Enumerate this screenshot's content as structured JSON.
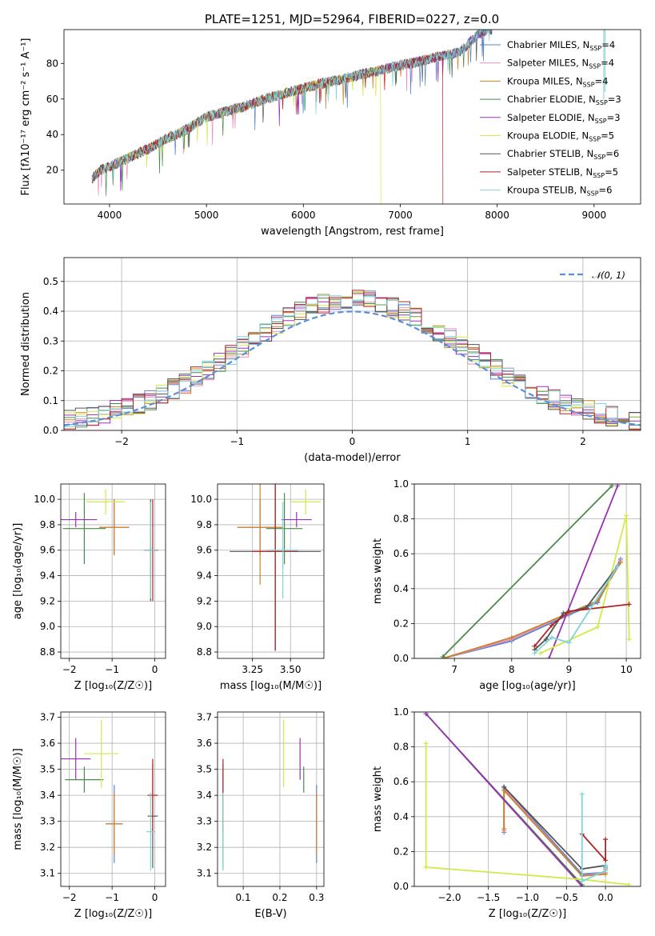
{
  "chart_data": [
    {
      "type": "line",
      "title": "PLATE=1251, MJD=52964, FIBERID=0227, z=0.0",
      "xlabel": "wavelength [Angstrom, rest frame]",
      "ylabel": "Flux [f$_\\lambda$10$^{-17}$ erg cm$^{-2}$ s$^{-1}$ A$^{-1}$]",
      "ylabel_display": "Flux [fλ10⁻¹⁷ erg cm⁻² s⁻¹ A⁻¹]",
      "xlim": [
        3530,
        9480
      ],
      "ylim": [
        1,
        99
      ],
      "xticks": [
        "4000",
        "5000",
        "6000",
        "7000",
        "8000",
        "9000"
      ],
      "yticks": [
        "20",
        "40",
        "60",
        "80"
      ],
      "grid": false,
      "legend_position": "top-right",
      "legend": [
        {
          "name": "Chabrier MILES, N$_{SSP}$=4",
          "label": "Chabrier MILES, N",
          "nssp": "=4",
          "color": "#5b82c9"
        },
        {
          "name": "Salpeter MILES, N$_{SSP}$=4",
          "label": "Salpeter MILES, N",
          "nssp": "=4",
          "color": "#e88fc0"
        },
        {
          "name": "Kroupa MILES, N$_{SSP}$=4",
          "label": "Kroupa MILES, N",
          "nssp": "=4",
          "color": "#c9822a"
        },
        {
          "name": "Chabrier ELODIE, N$_{SSP}$=3",
          "label": "Chabrier ELODIE, N",
          "nssp": "=3",
          "color": "#4a8a4a"
        },
        {
          "name": "Salpeter ELODIE, N$_{SSP}$=3",
          "label": "Salpeter ELODIE, N",
          "nssp": "=3",
          "color": "#9b30b8"
        },
        {
          "name": "Kroupa ELODIE, N$_{SSP}$=5",
          "label": "Kroupa ELODIE, N",
          "nssp": "=5",
          "color": "#d4e84a"
        },
        {
          "name": "Chabrier STELIB, N$_{SSP}$=6",
          "label": "Chabrier STELIB, N",
          "nssp": "=6",
          "color": "#555555"
        },
        {
          "name": "Salpeter STELIB, N$_{SSP}$=5",
          "label": "Salpeter STELIB, N",
          "nssp": "=5",
          "color": "#b22222"
        },
        {
          "name": "Kroupa STELIB, N$_{SSP}$=6",
          "label": "Kroupa STELIB, N",
          "nssp": "=6",
          "color": "#7fd4d8"
        }
      ],
      "spectrum_shape": {
        "x": [
          3820,
          3900,
          4000,
          4200,
          4400,
          4600,
          4800,
          5000,
          5200,
          5400,
          5600,
          5800,
          6000,
          6200,
          6400,
          6600,
          6800,
          7000,
          7200,
          7400,
          7600,
          7800,
          7900
        ],
        "y": [
          15,
          20,
          22,
          27,
          32,
          38,
          43,
          50,
          53,
          56,
          60,
          63,
          66,
          69,
          71,
          74,
          76,
          79,
          81,
          84,
          86,
          96,
          99
        ]
      },
      "spectrum_cutoffs": [
        {
          "series": "Kroupa ELODIE",
          "x": 6800
        },
        {
          "series": "Salpeter STELIB",
          "x": 7440
        }
      ],
      "spike_x": [
        9100
      ]
    },
    {
      "type": "step",
      "xlabel": "(data-model)/error",
      "ylabel": "Normed distribution",
      "xlim": [
        -2.5,
        2.5
      ],
      "ylim": [
        0,
        0.58
      ],
      "xticks": [
        "−2",
        "−1",
        "0",
        "1",
        "2"
      ],
      "yticks": [
        "0.0",
        "0.1",
        "0.2",
        "0.3",
        "0.4",
        "0.5"
      ],
      "grid": true,
      "legend_position": "top-right",
      "legend": [
        {
          "name": "$\\mathcal{N}(0,1)$",
          "label": "𝒩(0, 1)",
          "color": "#5b8fd9",
          "style": "dashed"
        }
      ],
      "bin_edges_range": [
        -2.5,
        2.5
      ],
      "bin_width": 0.1,
      "reference_curve": "gaussian(0,1)"
    },
    {
      "type": "errorbar",
      "xlabel": "Z [log$_{10}$($Z/Z_\\odot$)]",
      "xlabel_display": "Z [log₁₀(Z/Z☉)]",
      "ylabel": "age  [log$_{10}$($age/yr$)]",
      "ylabel_display": "age  [log₁₀(age/yr)]",
      "xlim": [
        -2.2,
        0.25
      ],
      "ylim": [
        8.75,
        10.12
      ],
      "xticks": [
        "−2",
        "−1",
        "0"
      ],
      "yticks": [
        "8.8",
        "9.0",
        "9.2",
        "9.4",
        "9.6",
        "9.8",
        "10.0"
      ],
      "grid": true,
      "points": [
        {
          "series": "Chabrier MILES",
          "x": -0.95,
          "xerr": 0.35,
          "y": 9.78,
          "yerr": 0.22
        },
        {
          "series": "Salpeter MILES",
          "x": -0.95,
          "xerr": 0.33,
          "y": 9.78,
          "yerr": 0.2
        },
        {
          "series": "Kroupa MILES",
          "x": -0.95,
          "xerr": 0.35,
          "y": 9.78,
          "yerr": 0.22
        },
        {
          "series": "Chabrier ELODIE",
          "x": -1.65,
          "xerr": 0.5,
          "y": 9.77,
          "yerr": 0.28
        },
        {
          "series": "Salpeter ELODIE",
          "x": -1.85,
          "xerr": 0.5,
          "y": 9.84,
          "yerr": 0.06
        },
        {
          "series": "Kroupa ELODIE",
          "x": -1.15,
          "xerr": 0.45,
          "y": 9.98,
          "yerr": 0.1
        },
        {
          "series": "Chabrier STELIB",
          "x": -0.1,
          "xerr": 0.15,
          "y": 9.6,
          "yerr": 0.4
        },
        {
          "series": "Salpeter STELIB",
          "x": -0.05,
          "xerr": 0.12,
          "y": 9.6,
          "yerr": 0.4
        },
        {
          "series": "Kroupa STELIB",
          "x": -0.1,
          "xerr": 0.15,
          "y": 9.6,
          "yerr": 0.38
        }
      ]
    },
    {
      "type": "errorbar",
      "xlabel": "mass [log$_{10}$($M/M_\\odot$)]",
      "xlabel_display": "mass [log₁₀(M/M☉)]",
      "xlim": [
        3.02,
        3.72
      ],
      "ylim": [
        8.75,
        10.12
      ],
      "xticks": [
        "3.25",
        "3.50"
      ],
      "yticks": [
        "8.8",
        "9.0",
        "9.2",
        "9.4",
        "9.6",
        "9.8",
        "10.0"
      ],
      "grid": true,
      "points": [
        {
          "series": "Chabrier MILES",
          "x": 3.3,
          "xerr": 0.15,
          "y": 9.78,
          "yerr": 0.22
        },
        {
          "series": "Salpeter MILES",
          "x": 3.3,
          "xerr": 0.15,
          "y": 9.78,
          "yerr": 0.2
        },
        {
          "series": "Kroupa MILES",
          "x": 3.3,
          "xerr": 0.15,
          "y": 9.78,
          "yerr": 0.45
        },
        {
          "series": "Chabrier ELODIE",
          "x": 3.46,
          "xerr": 0.12,
          "y": 9.77,
          "yerr": 0.28
        },
        {
          "series": "Salpeter ELODIE",
          "x": 3.54,
          "xerr": 0.1,
          "y": 9.84,
          "yerr": 0.06
        },
        {
          "series": "Kroupa ELODIE",
          "x": 3.6,
          "xerr": 0.1,
          "y": 9.98,
          "yerr": 0.1
        },
        {
          "series": "Chabrier STELIB",
          "x": 3.4,
          "xerr": 0.3,
          "y": 9.59,
          "yerr": 0.78
        },
        {
          "series": "Salpeter STELIB",
          "x": 3.4,
          "xerr": 0.15,
          "y": 9.59,
          "yerr": 0.78
        },
        {
          "series": "Kroupa STELIB",
          "x": 3.45,
          "xerr": 0.1,
          "y": 9.6,
          "yerr": 0.38
        }
      ]
    },
    {
      "type": "line",
      "xlabel": "age  [log$_{10}$($age/yr$)]",
      "xlabel_display": "age  [log₁₀(age/yr)]",
      "ylabel": "mass weight",
      "xlim": [
        6.3,
        10.25
      ],
      "ylim": [
        0,
        1
      ],
      "xticks": [
        "7",
        "8",
        "9",
        "10"
      ],
      "yticks": [
        "0.0",
        "0.2",
        "0.4",
        "0.6",
        "0.8",
        "1.0"
      ],
      "grid": true,
      "series": [
        {
          "name": "Chabrier MILES",
          "x": [
            6.8,
            8.0,
            9.0,
            9.5,
            9.9
          ],
          "y": [
            0.0,
            0.1,
            0.25,
            0.32,
            0.57
          ]
        },
        {
          "name": "Salpeter MILES",
          "x": [
            6.8,
            8.0,
            9.0,
            9.5,
            9.9
          ],
          "y": [
            0.0,
            0.11,
            0.26,
            0.33,
            0.56
          ]
        },
        {
          "name": "Kroupa MILES",
          "x": [
            6.8,
            8.0,
            9.0,
            9.5,
            9.9
          ],
          "y": [
            0.0,
            0.12,
            0.26,
            0.33,
            0.55
          ]
        },
        {
          "name": "Chabrier ELODIE",
          "x": [
            6.8,
            9.75
          ],
          "y": [
            0.01,
            0.99
          ]
        },
        {
          "name": "Salpeter ELODIE",
          "x": [
            8.65,
            9.85
          ],
          "y": [
            0.0,
            0.99
          ]
        },
        {
          "name": "Kroupa ELODIE",
          "x": [
            8.5,
            9.5,
            10.0,
            10.05
          ],
          "y": [
            0.03,
            0.18,
            0.82,
            0.11
          ]
        },
        {
          "name": "Chabrier STELIB",
          "x": [
            8.4,
            8.6,
            8.9,
            9.3,
            9.85
          ],
          "y": [
            0.05,
            0.11,
            0.26,
            0.29,
            0.53
          ]
        },
        {
          "name": "Salpeter STELIB",
          "x": [
            8.4,
            8.7,
            9.0,
            10.05
          ],
          "y": [
            0.07,
            0.19,
            0.27,
            0.31
          ]
        },
        {
          "name": "Kroupa STELIB",
          "x": [
            8.4,
            8.7,
            9.0,
            9.85
          ],
          "y": [
            0.03,
            0.12,
            0.09,
            0.53
          ]
        }
      ]
    },
    {
      "type": "errorbar",
      "xlabel": "Z [log$_{10}$($Z/Z_\\odot$)]",
      "xlabel_display": "Z [log₁₀(Z/Z☉)]",
      "ylabel": "mass [log$_{10}$($M/M_\\odot$)]",
      "ylabel_display": "mass [log₁₀(M/M☉)]",
      "xlim": [
        -2.2,
        0.25
      ],
      "ylim": [
        3.05,
        3.72
      ],
      "xticks": [
        "−2",
        "−1",
        "0"
      ],
      "yticks": [
        "3.1",
        "3.2",
        "3.3",
        "3.4",
        "3.5",
        "3.6",
        "3.7"
      ],
      "grid": true,
      "points": [
        {
          "series": "Chabrier MILES",
          "x": -0.95,
          "xerr": 0.2,
          "y": 3.29,
          "yerr": 0.15
        },
        {
          "series": "Salpeter MILES",
          "x": -0.95,
          "xerr": 0.2,
          "y": 3.29,
          "yerr": 0.1
        },
        {
          "series": "Kroupa MILES",
          "x": -0.95,
          "xerr": 0.2,
          "y": 3.29,
          "yerr": 0.12
        },
        {
          "series": "Chabrier ELODIE",
          "x": -1.65,
          "xerr": 0.45,
          "y": 3.46,
          "yerr": 0.05
        },
        {
          "series": "Salpeter ELODIE",
          "x": -1.85,
          "xerr": 0.35,
          "y": 3.54,
          "yerr": 0.08
        },
        {
          "series": "Kroupa ELODIE",
          "x": -1.25,
          "xerr": 0.4,
          "y": 3.56,
          "yerr": 0.13
        },
        {
          "series": "Chabrier STELIB",
          "x": -0.05,
          "xerr": 0.12,
          "y": 3.32,
          "yerr": 0.2
        },
        {
          "series": "Salpeter STELIB",
          "x": -0.05,
          "xerr": 0.12,
          "y": 3.4,
          "yerr": 0.14
        },
        {
          "series": "Kroupa STELIB",
          "x": -0.1,
          "xerr": 0.1,
          "y": 3.26,
          "yerr": 0.15
        }
      ]
    },
    {
      "type": "errorbar",
      "xlabel": "E(B-V)",
      "xlim": [
        0.03,
        0.32
      ],
      "ylim": [
        3.05,
        3.72
      ],
      "xticks": [
        "0.1",
        "0.2",
        "0.3"
      ],
      "yticks": [
        "3.1",
        "3.2",
        "3.3",
        "3.4",
        "3.5",
        "3.6",
        "3.7"
      ],
      "grid": true,
      "points": [
        {
          "series": "Chabrier MILES",
          "x": 0.3,
          "xerr": 0.0,
          "y": 3.29,
          "yerr": 0.15
        },
        {
          "series": "Salpeter MILES",
          "x": 0.3,
          "xerr": 0.0,
          "y": 3.29,
          "yerr": 0.1
        },
        {
          "series": "Kroupa MILES",
          "x": 0.3,
          "xerr": 0.0,
          "y": 3.29,
          "yerr": 0.12
        },
        {
          "series": "Chabrier ELODIE",
          "x": 0.265,
          "xerr": 0.0,
          "y": 3.46,
          "yerr": 0.05
        },
        {
          "series": "Salpeter ELODIE",
          "x": 0.255,
          "xerr": 0.0,
          "y": 3.54,
          "yerr": 0.08
        },
        {
          "series": "Kroupa ELODIE",
          "x": 0.21,
          "xerr": 0.0,
          "y": 3.56,
          "yerr": 0.13
        },
        {
          "series": "Chabrier STELIB",
          "x": 0.045,
          "xerr": 0.0,
          "y": 3.32,
          "yerr": 0.2
        },
        {
          "series": "Salpeter STELIB",
          "x": 0.045,
          "xerr": 0.0,
          "y": 3.4,
          "yerr": 0.14
        },
        {
          "series": "Kroupa STELIB",
          "x": 0.045,
          "xerr": 0.0,
          "y": 3.26,
          "yerr": 0.15
        }
      ]
    },
    {
      "type": "line",
      "xlabel": "Z [log$_{10}$($Z/Z_\\odot$)]",
      "xlabel_display": "Z [log₁₀(Z/Z☉)]",
      "ylabel": "mass weight",
      "xlim": [
        -2.45,
        0.45
      ],
      "ylim": [
        0,
        1
      ],
      "xticks": [
        "−2.0",
        "−1.5",
        "−1.0",
        "−0.5",
        "0.0"
      ],
      "yticks": [
        "0.0",
        "0.2",
        "0.4",
        "0.6",
        "0.8",
        "1.0"
      ],
      "grid": true,
      "series": [
        {
          "name": "Chabrier MILES",
          "x": [
            -1.3,
            -1.3,
            -0.3,
            0.0,
            0.0
          ],
          "y": [
            0.31,
            0.57,
            0.07,
            0.08,
            0.11
          ]
        },
        {
          "name": "Salpeter MILES",
          "x": [
            -1.3,
            -1.3,
            -0.3,
            0.0,
            0.0
          ],
          "y": [
            0.32,
            0.56,
            0.06,
            0.08,
            0.1
          ]
        },
        {
          "name": "Kroupa MILES",
          "x": [
            -1.3,
            -1.3,
            -0.3,
            0.0,
            0.0
          ],
          "y": [
            0.33,
            0.55,
            0.06,
            0.07,
            0.1
          ]
        },
        {
          "name": "Chabrier ELODIE",
          "x": [
            -2.3,
            -0.3,
            -0.3
          ],
          "y": [
            0.99,
            0.01,
            0.0
          ]
        },
        {
          "name": "Salpeter ELODIE",
          "x": [
            -2.3,
            -0.3
          ],
          "y": [
            0.99,
            0.0
          ]
        },
        {
          "name": "Kroupa ELODIE",
          "x": [
            -2.3,
            -2.3,
            -0.3,
            0.3
          ],
          "y": [
            0.82,
            0.11,
            0.04,
            0.01
          ]
        },
        {
          "name": "Chabrier STELIB",
          "x": [
            -1.3,
            -0.3,
            0.0,
            0.0
          ],
          "y": [
            0.57,
            0.1,
            0.12,
            0.12
          ]
        },
        {
          "name": "Salpeter STELIB",
          "x": [
            -0.3,
            0.0,
            0.0
          ],
          "y": [
            0.3,
            0.15,
            0.27
          ]
        },
        {
          "name": "Kroupa STELIB",
          "x": [
            -0.3,
            -0.3,
            0.0,
            0.0
          ],
          "y": [
            0.53,
            0.03,
            0.09,
            0.12
          ]
        }
      ]
    }
  ]
}
